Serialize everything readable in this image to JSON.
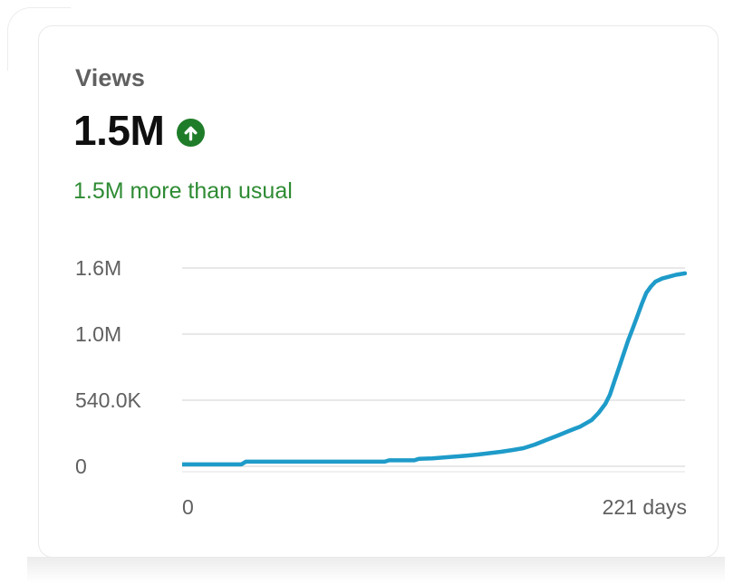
{
  "card": {
    "title": "Views",
    "metric_value": "1.5M",
    "trend_icon": "arrow-up-circle-icon",
    "trend_text": "1.5M more than usual",
    "colors": {
      "accent_line": "#1e9bc9",
      "trend_green": "#2e8b33",
      "badge_green": "#1f7d29",
      "title_gray": "#606060",
      "metric_black": "#0f0f0f",
      "gridline": "#e8e8e8"
    }
  },
  "chart_data": {
    "type": "line",
    "title": "Views over time",
    "xlabel": "days",
    "ylabel": "views",
    "x_range": [
      0,
      221
    ],
    "x_ticks": [
      "0",
      "221 days"
    ],
    "y_ticks": [
      "1.6M",
      "1.0M",
      "540.0K",
      "0"
    ],
    "y_max": 1600000,
    "grid": true,
    "legend": "none",
    "series": [
      {
        "name": "Views",
        "color": "#1e9bc9",
        "points": [
          [
            0,
            15000
          ],
          [
            26,
            15000
          ],
          [
            28,
            37000
          ],
          [
            89,
            37000
          ],
          [
            91,
            48000
          ],
          [
            102,
            48000
          ],
          [
            104,
            60000
          ],
          [
            110,
            64000
          ],
          [
            115,
            71000
          ],
          [
            120,
            78000
          ],
          [
            125,
            86000
          ],
          [
            130,
            95000
          ],
          [
            135,
            106000
          ],
          [
            140,
            117000
          ],
          [
            145,
            131000
          ],
          [
            150,
            146000
          ],
          [
            155,
            175000
          ],
          [
            160,
            212000
          ],
          [
            165,
            248000
          ],
          [
            170,
            285000
          ],
          [
            175,
            321000
          ],
          [
            180,
            373000
          ],
          [
            183,
            431000
          ],
          [
            186,
            504000
          ],
          [
            188,
            577000
          ],
          [
            190,
            687000
          ],
          [
            192,
            796000
          ],
          [
            194,
            906000
          ],
          [
            196,
            1015000
          ],
          [
            198,
            1110000
          ],
          [
            200,
            1210000
          ],
          [
            202,
            1310000
          ],
          [
            204,
            1400000
          ],
          [
            206,
            1450000
          ],
          [
            208,
            1490000
          ],
          [
            211,
            1515000
          ],
          [
            214,
            1530000
          ],
          [
            217,
            1545000
          ],
          [
            221,
            1557000
          ]
        ]
      }
    ]
  }
}
